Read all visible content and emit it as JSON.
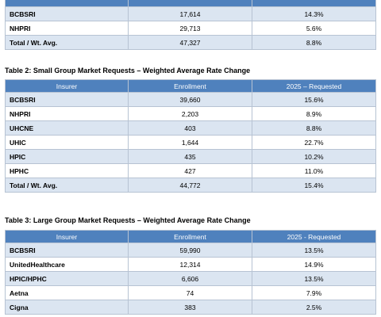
{
  "table1": {
    "rows": [
      {
        "insurer": "BCBSRI",
        "enrollment": "17,614",
        "rate": "14.3%"
      },
      {
        "insurer": "NHPRI",
        "enrollment": "29,713",
        "rate": "5.6%"
      },
      {
        "insurer": "Total / Wt. Avg.",
        "enrollment": "47,327",
        "rate": "8.8%"
      }
    ]
  },
  "table2": {
    "title": "Table 2: Small Group Market Requests – Weighted Average Rate Change",
    "headers": {
      "insurer": "Insurer",
      "enrollment": "Enrollment",
      "rate": "2025 – Requested"
    },
    "rows": [
      {
        "insurer": "BCBSRI",
        "enrollment": "39,660",
        "rate": "15.6%"
      },
      {
        "insurer": "NHPRI",
        "enrollment": "2,203",
        "rate": "8.9%"
      },
      {
        "insurer": "UHCNE",
        "enrollment": "403",
        "rate": "8.8%"
      },
      {
        "insurer": "UHIC",
        "enrollment": "1,644",
        "rate": "22.7%"
      },
      {
        "insurer": "HPIC",
        "enrollment": "435",
        "rate": "10.2%"
      },
      {
        "insurer": "HPHC",
        "enrollment": "427",
        "rate": "11.0%"
      },
      {
        "insurer": "Total / Wt. Avg.",
        "enrollment": "44,772",
        "rate": "15.4%"
      }
    ]
  },
  "table3": {
    "title": "Table 3: Large Group Market Requests – Weighted Average Rate Change",
    "headers": {
      "insurer": "Insurer",
      "enrollment": "Enrollment",
      "rate": "2025 - Requested"
    },
    "rows": [
      {
        "insurer": "BCBSRI",
        "enrollment": "59,990",
        "rate": "13.5%"
      },
      {
        "insurer": "UnitedHealthcare",
        "enrollment": "12,314",
        "rate": "14.9%"
      },
      {
        "insurer": "HPIC/HPHC",
        "enrollment": "6,606",
        "rate": "13.5%"
      },
      {
        "insurer": "Aetna",
        "enrollment": "74",
        "rate": "7.9%"
      },
      {
        "insurer": "Cigna",
        "enrollment": "383",
        "rate": "2.5%"
      }
    ]
  }
}
